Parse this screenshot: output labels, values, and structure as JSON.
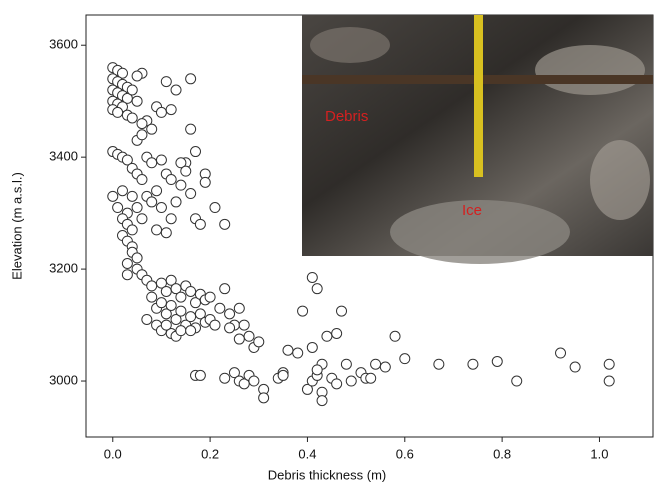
{
  "chart_data": {
    "type": "scatter",
    "x_label": "Debris thickness (m)",
    "y_label": "Elevation (m a.s.l.)",
    "color": "#333333",
    "xlim": [
      -0.055,
      1.11
    ],
    "ylim": [
      2900,
      3654
    ],
    "xticks": [
      {
        "value": 0,
        "label": "0.0"
      },
      0.2,
      0.4,
      0.6,
      0.8,
      {
        "value": 1,
        "label": "1.0"
      }
    ],
    "yticks": [
      3000,
      3200,
      3400,
      3600
    ],
    "annotations": [
      {
        "text": "Debris",
        "color": "#d42020"
      },
      {
        "text": "Ice",
        "color": "#d42020"
      }
    ],
    "x": [
      0.0,
      0.01,
      0.02,
      0.0,
      0.01,
      0.02,
      0.03,
      0.0,
      0.01,
      0.02,
      0.03,
      0.0,
      0.01,
      0.02,
      0.0,
      0.01,
      0.03,
      0.04,
      0.06,
      0.05,
      0.04,
      0.05,
      0.07,
      0.06,
      0.09,
      0.1,
      0.11,
      0.12,
      0.16,
      0.13,
      0.16,
      0.17,
      0.15,
      0.05,
      0.06,
      0.08,
      0.0,
      0.01,
      0.02,
      0.03,
      0.04,
      0.05,
      0.06,
      0.07,
      0.08,
      0.1,
      0.11,
      0.12,
      0.14,
      0.15,
      0.19,
      0.19,
      0.16,
      0.14,
      0.09,
      0.07,
      0.04,
      0.02,
      0.0,
      0.01,
      0.03,
      0.05,
      0.06,
      0.08,
      0.1,
      0.12,
      0.13,
      0.17,
      0.18,
      0.21,
      0.23,
      0.11,
      0.09,
      0.02,
      0.03,
      0.04,
      0.02,
      0.03,
      0.04,
      0.04,
      0.05,
      0.03,
      0.05,
      0.03,
      0.06,
      0.07,
      0.08,
      0.1,
      0.11,
      0.12,
      0.13,
      0.14,
      0.15,
      0.16,
      0.17,
      0.18,
      0.19,
      0.2,
      0.08,
      0.09,
      0.1,
      0.11,
      0.12,
      0.13,
      0.14,
      0.15,
      0.16,
      0.17,
      0.18,
      0.19,
      0.2,
      0.21,
      0.22,
      0.23,
      0.24,
      0.25,
      0.26,
      0.27,
      0.28,
      0.29,
      0.3,
      0.07,
      0.09,
      0.1,
      0.12,
      0.13,
      0.11,
      0.14,
      0.16,
      0.24,
      0.26,
      0.17,
      0.18,
      0.23,
      0.25,
      0.26,
      0.27,
      0.28,
      0.29,
      0.31,
      0.31,
      0.34,
      0.35,
      0.36,
      0.38,
      0.35,
      0.39,
      0.41,
      0.42,
      0.4,
      0.41,
      0.42,
      0.43,
      0.43,
      0.43,
      0.44,
      0.45,
      0.46,
      0.46,
      0.47,
      0.48,
      0.49,
      0.51,
      0.52,
      0.53,
      0.54,
      0.56,
      0.58,
      0.6,
      0.67,
      0.74,
      0.79,
      0.83,
      0.92,
      0.95,
      1.02,
      1.02,
      0.41,
      0.42
    ],
    "values": [
      3560,
      3555,
      3550,
      3540,
      3535,
      3530,
      3525,
      3520,
      3515,
      3510,
      3505,
      3500,
      3495,
      3490,
      3485,
      3480,
      3475,
      3470,
      3550,
      3545,
      3520,
      3500,
      3465,
      3460,
      3490,
      3480,
      3535,
      3485,
      3540,
      3520,
      3450,
      3410,
      3390,
      3430,
      3440,
      3450,
      3410,
      3405,
      3400,
      3395,
      3380,
      3370,
      3360,
      3400,
      3390,
      3395,
      3370,
      3360,
      3390,
      3375,
      3370,
      3355,
      3335,
      3350,
      3340,
      3330,
      3330,
      3340,
      3330,
      3310,
      3300,
      3310,
      3290,
      3320,
      3310,
      3290,
      3320,
      3290,
      3280,
      3310,
      3280,
      3265,
      3270,
      3290,
      3280,
      3270,
      3260,
      3250,
      3240,
      3230,
      3220,
      3210,
      3200,
      3190,
      3190,
      3180,
      3170,
      3175,
      3160,
      3180,
      3165,
      3150,
      3170,
      3160,
      3140,
      3155,
      3145,
      3150,
      3150,
      3130,
      3140,
      3120,
      3135,
      3110,
      3125,
      3100,
      3115,
      3095,
      3120,
      3105,
      3110,
      3100,
      3130,
      3165,
      3120,
      3100,
      3130,
      3100,
      3080,
      3060,
      3070,
      3110,
      3100,
      3090,
      3085,
      3080,
      3100,
      3090,
      3090,
      3095,
      3075,
      3010,
      3010,
      3005,
      3015,
      3000,
      2995,
      3010,
      3000,
      2985,
      2970,
      3005,
      3015,
      3055,
      3050,
      3010,
      3125,
      3185,
      3165,
      2985,
      3000,
      3010,
      3030,
      2980,
      2965,
      3080,
      3005,
      2995,
      3085,
      3125,
      3030,
      3000,
      3015,
      3005,
      3005,
      3030,
      3025,
      3080,
      3040,
      3030,
      3030,
      3035,
      3000,
      3050,
      3025,
      3030,
      3000,
      3060,
      3020
    ]
  }
}
